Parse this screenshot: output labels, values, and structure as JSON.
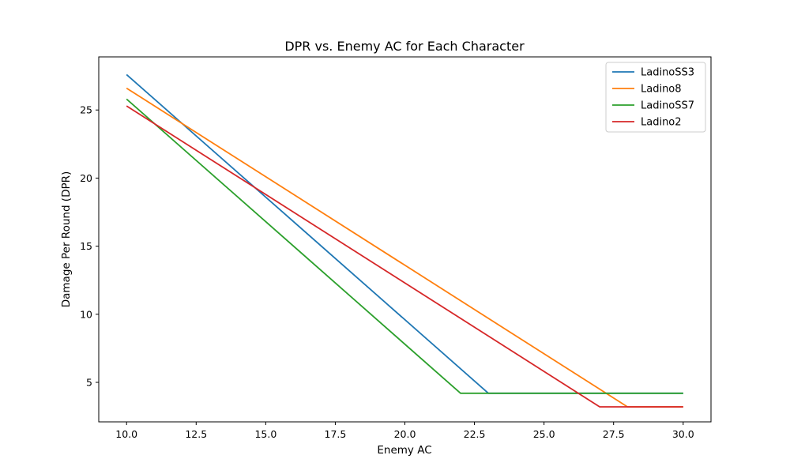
{
  "chart_data": {
    "type": "line",
    "title": "DPR vs. Enemy AC for Each Character",
    "xlabel": "Enemy AC",
    "ylabel": "Damage Per Round (DPR)",
    "xlim": [
      9,
      31
    ],
    "ylim": [
      2.1,
      28.9
    ],
    "xticks": [
      10,
      12.5,
      15,
      17.5,
      20,
      22.5,
      25,
      27.5,
      30
    ],
    "xtick_labels": [
      "10.0",
      "12.5",
      "15.0",
      "17.5",
      "20.0",
      "22.5",
      "25.0",
      "27.5",
      "30.0"
    ],
    "yticks": [
      5,
      10,
      15,
      20,
      25
    ],
    "ytick_labels": [
      "5",
      "10",
      "15",
      "20",
      "25"
    ],
    "legend_position": "top-right",
    "grid": false,
    "series": [
      {
        "name": "LadinoSS3",
        "color": "#1f77b4",
        "x": [
          10,
          23,
          30
        ],
        "y": [
          27.6,
          4.2,
          4.2
        ]
      },
      {
        "name": "Ladino8",
        "color": "#ff7f0e",
        "x": [
          10,
          28,
          30
        ],
        "y": [
          26.6,
          3.2,
          3.2
        ]
      },
      {
        "name": "LadinoSS7",
        "color": "#2ca02c",
        "x": [
          10,
          22,
          30
        ],
        "y": [
          25.8,
          4.2,
          4.2
        ]
      },
      {
        "name": "Ladino2",
        "color": "#d62728",
        "x": [
          10,
          27,
          30
        ],
        "y": [
          25.3,
          3.2,
          3.2
        ]
      }
    ]
  }
}
